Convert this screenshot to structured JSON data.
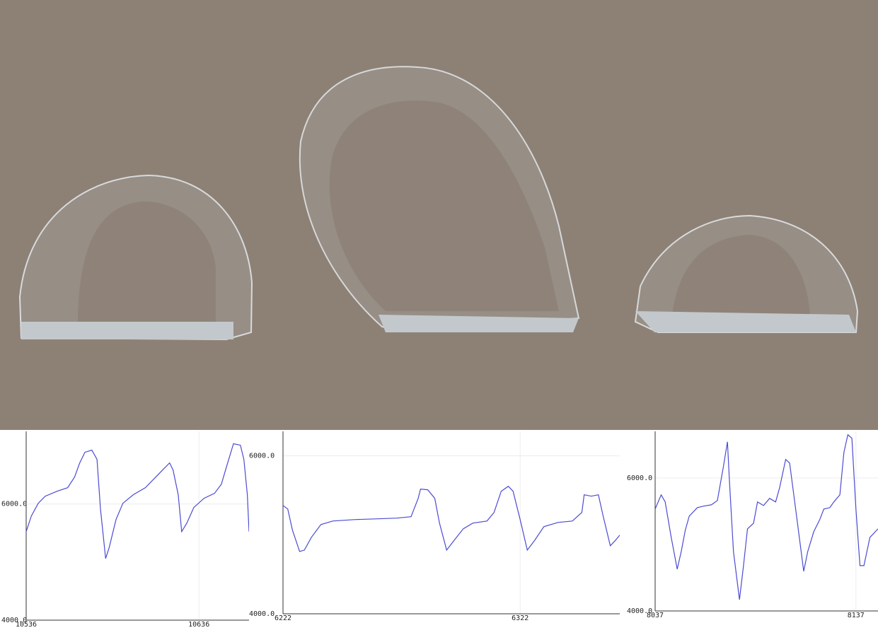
{
  "chart_data": [
    {
      "type": "line",
      "color": "#4b4bd2",
      "grid": true,
      "xlim": [
        10536,
        10665
      ],
      "ylim": [
        4000,
        7250
      ],
      "xticks": [
        10536,
        10636
      ],
      "yticks": [
        {
          "value": 4000,
          "label": "4000.0"
        },
        {
          "value": 6000,
          "label": "6000.0"
        }
      ],
      "x": [
        10536,
        10539,
        10543,
        10547,
        10554,
        10560,
        10564,
        10567,
        10570,
        10574,
        10577,
        10579,
        10582,
        10584,
        10588,
        10592,
        10598,
        10605,
        10611,
        10615,
        10619,
        10621,
        10624,
        10626,
        10629,
        10633,
        10639,
        10645,
        10649,
        10652,
        10656,
        10660,
        10662,
        10664,
        10665
      ],
      "values": [
        5524,
        5793,
        6012,
        6134,
        6220,
        6280,
        6463,
        6707,
        6890,
        6927,
        6768,
        5915,
        5061,
        5244,
        5732,
        6012,
        6159,
        6280,
        6463,
        6585,
        6707,
        6585,
        6159,
        5524,
        5671,
        5939,
        6098,
        6183,
        6341,
        6646,
        7037,
        7012,
        6768,
        6159,
        5524
      ]
    },
    {
      "type": "line",
      "color": "#4b4bd2",
      "grid": true,
      "xlim": [
        6222,
        6364
      ],
      "ylim": [
        4000,
        6310
      ],
      "xticks": [
        6222,
        6322
      ],
      "yticks": [
        {
          "value": 4000,
          "label": "4000.0"
        },
        {
          "value": 6000,
          "label": "6000.0"
        }
      ],
      "x": [
        6222,
        6224,
        6226,
        6229,
        6231,
        6234,
        6238,
        6243,
        6252,
        6261,
        6270,
        6276,
        6279,
        6280,
        6283,
        6286,
        6288,
        6291,
        6294,
        6298,
        6302,
        6308,
        6311,
        6314,
        6317,
        6319,
        6322,
        6325,
        6328,
        6332,
        6338,
        6344,
        6348,
        6349,
        6352,
        6355,
        6357,
        6360,
        6362,
        6364
      ],
      "values": [
        5372,
        5327,
        5058,
        4789,
        4807,
        4969,
        5130,
        5175,
        5193,
        5202,
        5211,
        5229,
        5462,
        5579,
        5570,
        5462,
        5148,
        4807,
        4924,
        5076,
        5148,
        5175,
        5283,
        5552,
        5614,
        5552,
        5193,
        4807,
        4924,
        5103,
        5157,
        5175,
        5283,
        5507,
        5489,
        5507,
        5238,
        4861,
        4924,
        4996
      ]
    },
    {
      "type": "line",
      "color": "#4b4bd2",
      "grid": true,
      "xlim": [
        8037,
        8148
      ],
      "ylim": [
        4000,
        6700
      ],
      "xticks": [
        8037,
        8137
      ],
      "yticks": [
        {
          "value": 4000,
          "label": "4000.0"
        },
        {
          "value": 6000,
          "label": "6000.0"
        }
      ],
      "x": [
        8037,
        8040,
        8042,
        8045,
        8048,
        8050,
        8052,
        8054,
        8058,
        8061,
        8065,
        8068,
        8071,
        8073,
        8074,
        8076,
        8079,
        8081,
        8083,
        8086,
        8088,
        8091,
        8094,
        8097,
        8099,
        8102,
        8104,
        8107,
        8111,
        8113,
        8116,
        8119,
        8121,
        8124,
        8126,
        8129,
        8131,
        8133,
        8135,
        8137,
        8139,
        8141,
        8144,
        8148
      ],
      "values": [
        5532,
        5745,
        5639,
        5107,
        4628,
        4894,
        5213,
        5426,
        5553,
        5575,
        5596,
        5660,
        6171,
        6543,
        5958,
        4894,
        4170,
        4681,
        5234,
        5319,
        5639,
        5585,
        5692,
        5639,
        5851,
        6277,
        6224,
        5532,
        4596,
        4894,
        5192,
        5373,
        5532,
        5553,
        5639,
        5745,
        6383,
        6649,
        6596,
        5532,
        4681,
        4681,
        5107,
        5234
      ]
    }
  ]
}
